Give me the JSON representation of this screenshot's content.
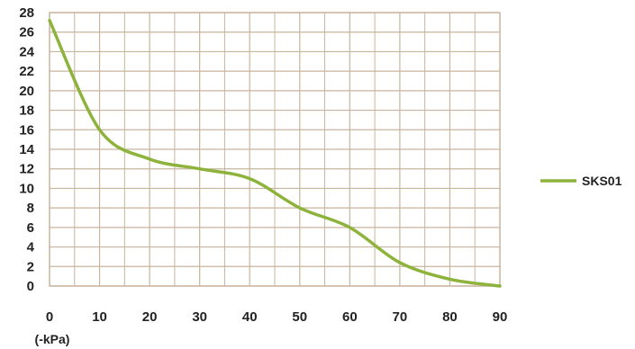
{
  "chart_data": {
    "type": "line",
    "x": [
      0,
      10,
      20,
      30,
      40,
      50,
      60,
      70,
      80,
      90
    ],
    "series": [
      {
        "name": "SKS01",
        "values": [
          27.2,
          16,
          13,
          12,
          11,
          8,
          6,
          2.4,
          0.7,
          0
        ]
      }
    ],
    "x_ticks": [
      "0",
      "10",
      "20",
      "30",
      "40",
      "50",
      "60",
      "70",
      "80",
      "90"
    ],
    "y_ticks": [
      "0",
      "2",
      "4",
      "6",
      "8",
      "10",
      "12",
      "14",
      "16",
      "18",
      "20",
      "22",
      "24",
      "26",
      "28"
    ],
    "xlim": [
      0,
      90
    ],
    "ylim": [
      0,
      28
    ],
    "x_unit": "(-kPa)",
    "title": "",
    "xlabel": "",
    "ylabel": "",
    "grid": true,
    "x_minor_grid": true,
    "legend_position": "right",
    "colors": {
      "series": "#8db33c",
      "grid": "#c9b49e",
      "text": "#222222"
    }
  }
}
